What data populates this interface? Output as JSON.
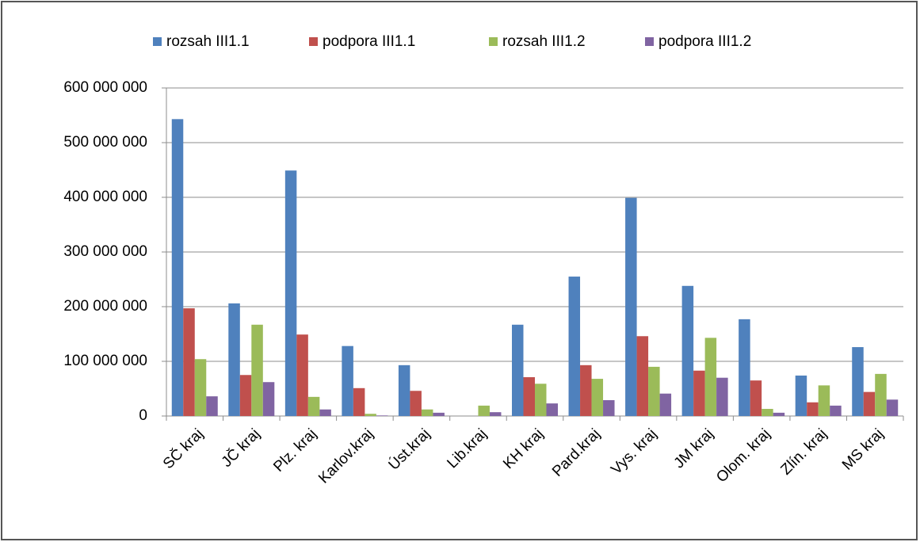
{
  "chart_data": {
    "type": "bar",
    "categories": [
      "SČ kraj",
      "JČ kraj",
      "Plz. kraj",
      "Karlov.kraj",
      "Úst.kraj",
      "Lib.kraj",
      "KH kraj",
      "Pard.kraj",
      "Vys. kraj",
      "JM kraj",
      "Olom. kraj",
      "Zlín. kraj",
      "MS kraj"
    ],
    "series": [
      {
        "name": "rozsah III1.1",
        "color": "#4f81bd",
        "values": [
          543000000,
          206000000,
          449000000,
          128000000,
          93000000,
          0,
          167000000,
          255000000,
          399000000,
          238000000,
          177000000,
          74000000,
          126000000
        ]
      },
      {
        "name": "podpora III1.1",
        "color": "#c0504d",
        "values": [
          197000000,
          75000000,
          149000000,
          51000000,
          46000000,
          0,
          71000000,
          93000000,
          146000000,
          83000000,
          65000000,
          25000000,
          44000000
        ]
      },
      {
        "name": "rozsah III1.2",
        "color": "#9bbb59",
        "values": [
          104000000,
          167000000,
          35000000,
          4000000,
          12000000,
          19000000,
          59000000,
          68000000,
          90000000,
          143000000,
          13000000,
          56000000,
          77000000
        ]
      },
      {
        "name": "podpora III1.2",
        "color": "#8064a2",
        "values": [
          36000000,
          62000000,
          12000000,
          1000000,
          6000000,
          7000000,
          23000000,
          29000000,
          41000000,
          70000000,
          6000000,
          19000000,
          30000000
        ]
      }
    ],
    "ylim": [
      0,
      600000000
    ],
    "yticks": [
      0,
      {
        "value": 100000000,
        "label": "100 000 000"
      },
      {
        "value": 200000000,
        "label": "200 000 000"
      },
      {
        "value": 300000000,
        "label": "300 000 000"
      },
      {
        "value": 400000000,
        "label": "400 000 000"
      },
      {
        "value": 500000000,
        "label": "500 000 000"
      },
      {
        "value": 600000000,
        "label": "600 000 000"
      }
    ],
    "grid": true
  }
}
